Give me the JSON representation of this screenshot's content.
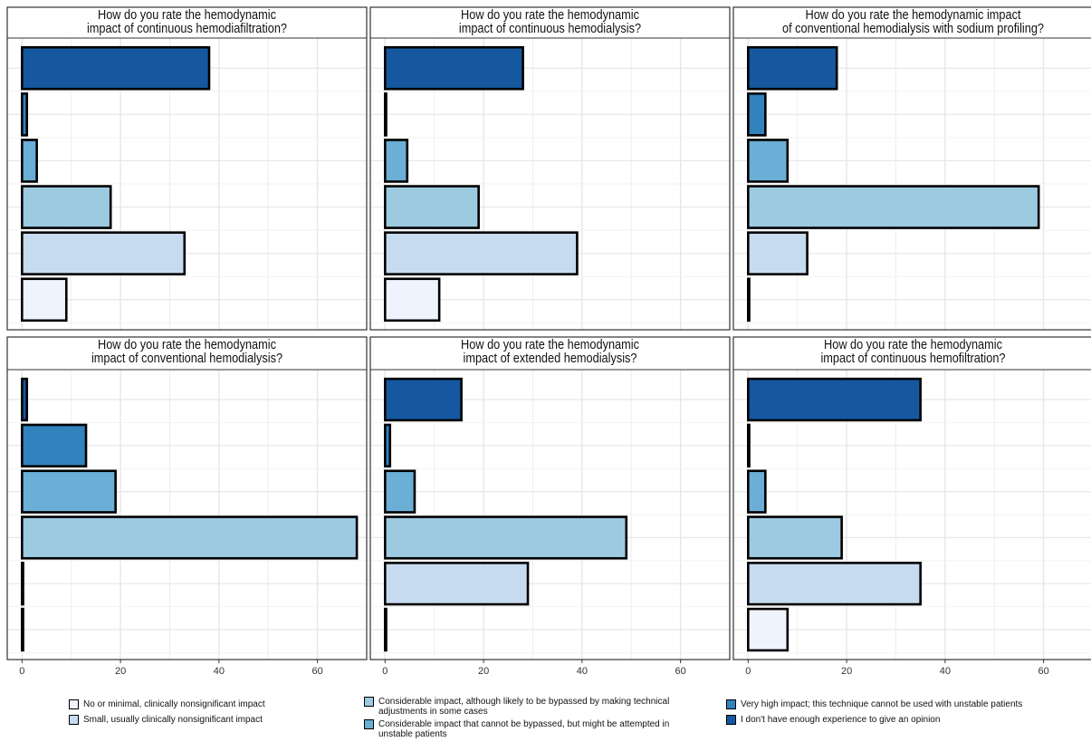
{
  "colors": {
    "no_minimal": "#eff3fe",
    "small": "#c6dbef",
    "considerable_bypassable": "#9ecae1",
    "considerable_not_bypassed": "#6baed6",
    "very_high": "#3182bd",
    "no_experience": "#1558a0",
    "grid": "#e6e6e6",
    "title_bg": "#ffffff"
  },
  "chart_data": [
    {
      "type": "bar",
      "title": "How do you rate the hemodynamic\nimpact of continuous hemodiafiltration?",
      "orientation": "horizontal",
      "categories": [
        "I don't have enough experience to give an opinion",
        "Very high impact; this technique cannot be used with unstable patients",
        "Considerable impact that cannot be bypassed, but might be attempted in unstable patients",
        "Considerable impact, although likely to be bypassed by making technical adjustments in some cases",
        "Small, usually clinically nonsignificant impact",
        "No or minimal, clinically nonsignificant impact"
      ],
      "values": [
        38,
        1,
        3,
        18,
        33,
        9
      ],
      "xlim": [
        -3,
        70
      ],
      "xticks": [
        0,
        20,
        40,
        60
      ],
      "show_x_ticks": false
    },
    {
      "type": "bar",
      "title": "How do you rate the hemodynamic\nimpact of continuous hemodialysis?",
      "orientation": "horizontal",
      "categories": [
        "I don't have enough experience to give an opinion",
        "Very high impact; this technique cannot be used with unstable patients",
        "Considerable impact that cannot be bypassed, but might be attempted in unstable patients",
        "Considerable impact, although likely to be bypassed by making technical adjustments in some cases",
        "Small, usually clinically nonsignificant impact",
        "No or minimal, clinically nonsignificant impact"
      ],
      "values": [
        28,
        0,
        4.5,
        19,
        39,
        11
      ],
      "xlim": [
        -3,
        70
      ],
      "xticks": [
        0,
        20,
        40,
        60
      ],
      "show_x_ticks": false
    },
    {
      "type": "bar",
      "title": "How do you rate the hemodynamic impact\nof conventional hemodialysis with sodium profiling?",
      "orientation": "horizontal",
      "categories": [
        "I don't have enough experience to give an opinion",
        "Very high impact; this technique cannot be used with unstable patients",
        "Considerable impact that cannot be bypassed, but might be attempted in unstable patients",
        "Considerable impact, although likely to be bypassed by making technical adjustments in some cases",
        "Small, usually clinically nonsignificant impact",
        "No or minimal, clinically nonsignificant impact"
      ],
      "values": [
        18,
        3.5,
        8,
        59,
        12,
        0
      ],
      "xlim": [
        -3,
        70
      ],
      "xticks": [
        0,
        20,
        40,
        60
      ],
      "show_x_ticks": false
    },
    {
      "type": "bar",
      "title": "How do you rate the hemodynamic\nimpact of conventional hemodialysis?",
      "orientation": "horizontal",
      "categories": [
        "I don't have enough experience to give an opinion",
        "Very high impact; this technique cannot be used with unstable patients",
        "Considerable impact that cannot be bypassed, but might be attempted in unstable patients",
        "Considerable impact, although likely to be bypassed by making technical adjustments in some cases",
        "Small, usually clinically nonsignificant impact",
        "No or minimal, clinically nonsignificant impact"
      ],
      "values": [
        1,
        13,
        19,
        68,
        0,
        0
      ],
      "xlim": [
        -3,
        70
      ],
      "xticks": [
        0,
        20,
        40,
        60
      ],
      "show_x_ticks": true
    },
    {
      "type": "bar",
      "title": "How do you rate the hemodynamic\nimpact of extended hemodialysis?",
      "orientation": "horizontal",
      "categories": [
        "I don't have enough experience to give an opinion",
        "Very high impact; this technique cannot be used with unstable patients",
        "Considerable impact that cannot be bypassed, but might be attempted in unstable patients",
        "Considerable impact, although likely to be bypassed by making technical adjustments in some cases",
        "Small, usually clinically nonsignificant impact",
        "No or minimal, clinically nonsignificant impact"
      ],
      "values": [
        15.5,
        1,
        6,
        49,
        29,
        0
      ],
      "xlim": [
        -3,
        70
      ],
      "xticks": [
        0,
        20,
        40,
        60
      ],
      "show_x_ticks": true
    },
    {
      "type": "bar",
      "title": "How do you rate the hemodynamic\nimpact of continuous hemofiltration?",
      "orientation": "horizontal",
      "categories": [
        "I don't have enough experience to give an opinion",
        "Very high impact; this technique cannot be used with unstable patients",
        "Considerable impact that cannot be bypassed, but might be attempted in unstable patients",
        "Considerable impact, although likely to be bypassed by making technical adjustments in some cases",
        "Small, usually clinically nonsignificant impact",
        "No or minimal, clinically nonsignificant impact"
      ],
      "values": [
        35,
        0,
        3.5,
        19,
        35,
        8
      ],
      "xlim": [
        -3,
        70
      ],
      "xticks": [
        0,
        20,
        40,
        60
      ],
      "show_x_ticks": true
    }
  ],
  "legend": {
    "items": [
      {
        "label": "No or minimal, clinically nonsignificant impact",
        "color_key": "no_minimal"
      },
      {
        "label": "Small, usually clinically nonsignificant impact",
        "color_key": "small"
      },
      {
        "label": "Considerable impact, although likely to be bypassed by making technical adjustments in some cases",
        "color_key": "considerable_bypassable"
      },
      {
        "label": "Considerable impact that cannot be bypassed, but might be attempted in unstable patients",
        "color_key": "considerable_not_bypassed"
      },
      {
        "label": "Very high impact; this technique cannot be used with unstable patients",
        "color_key": "very_high"
      },
      {
        "label": "I don't have enough experience to give an opinion",
        "color_key": "no_experience"
      }
    ]
  }
}
